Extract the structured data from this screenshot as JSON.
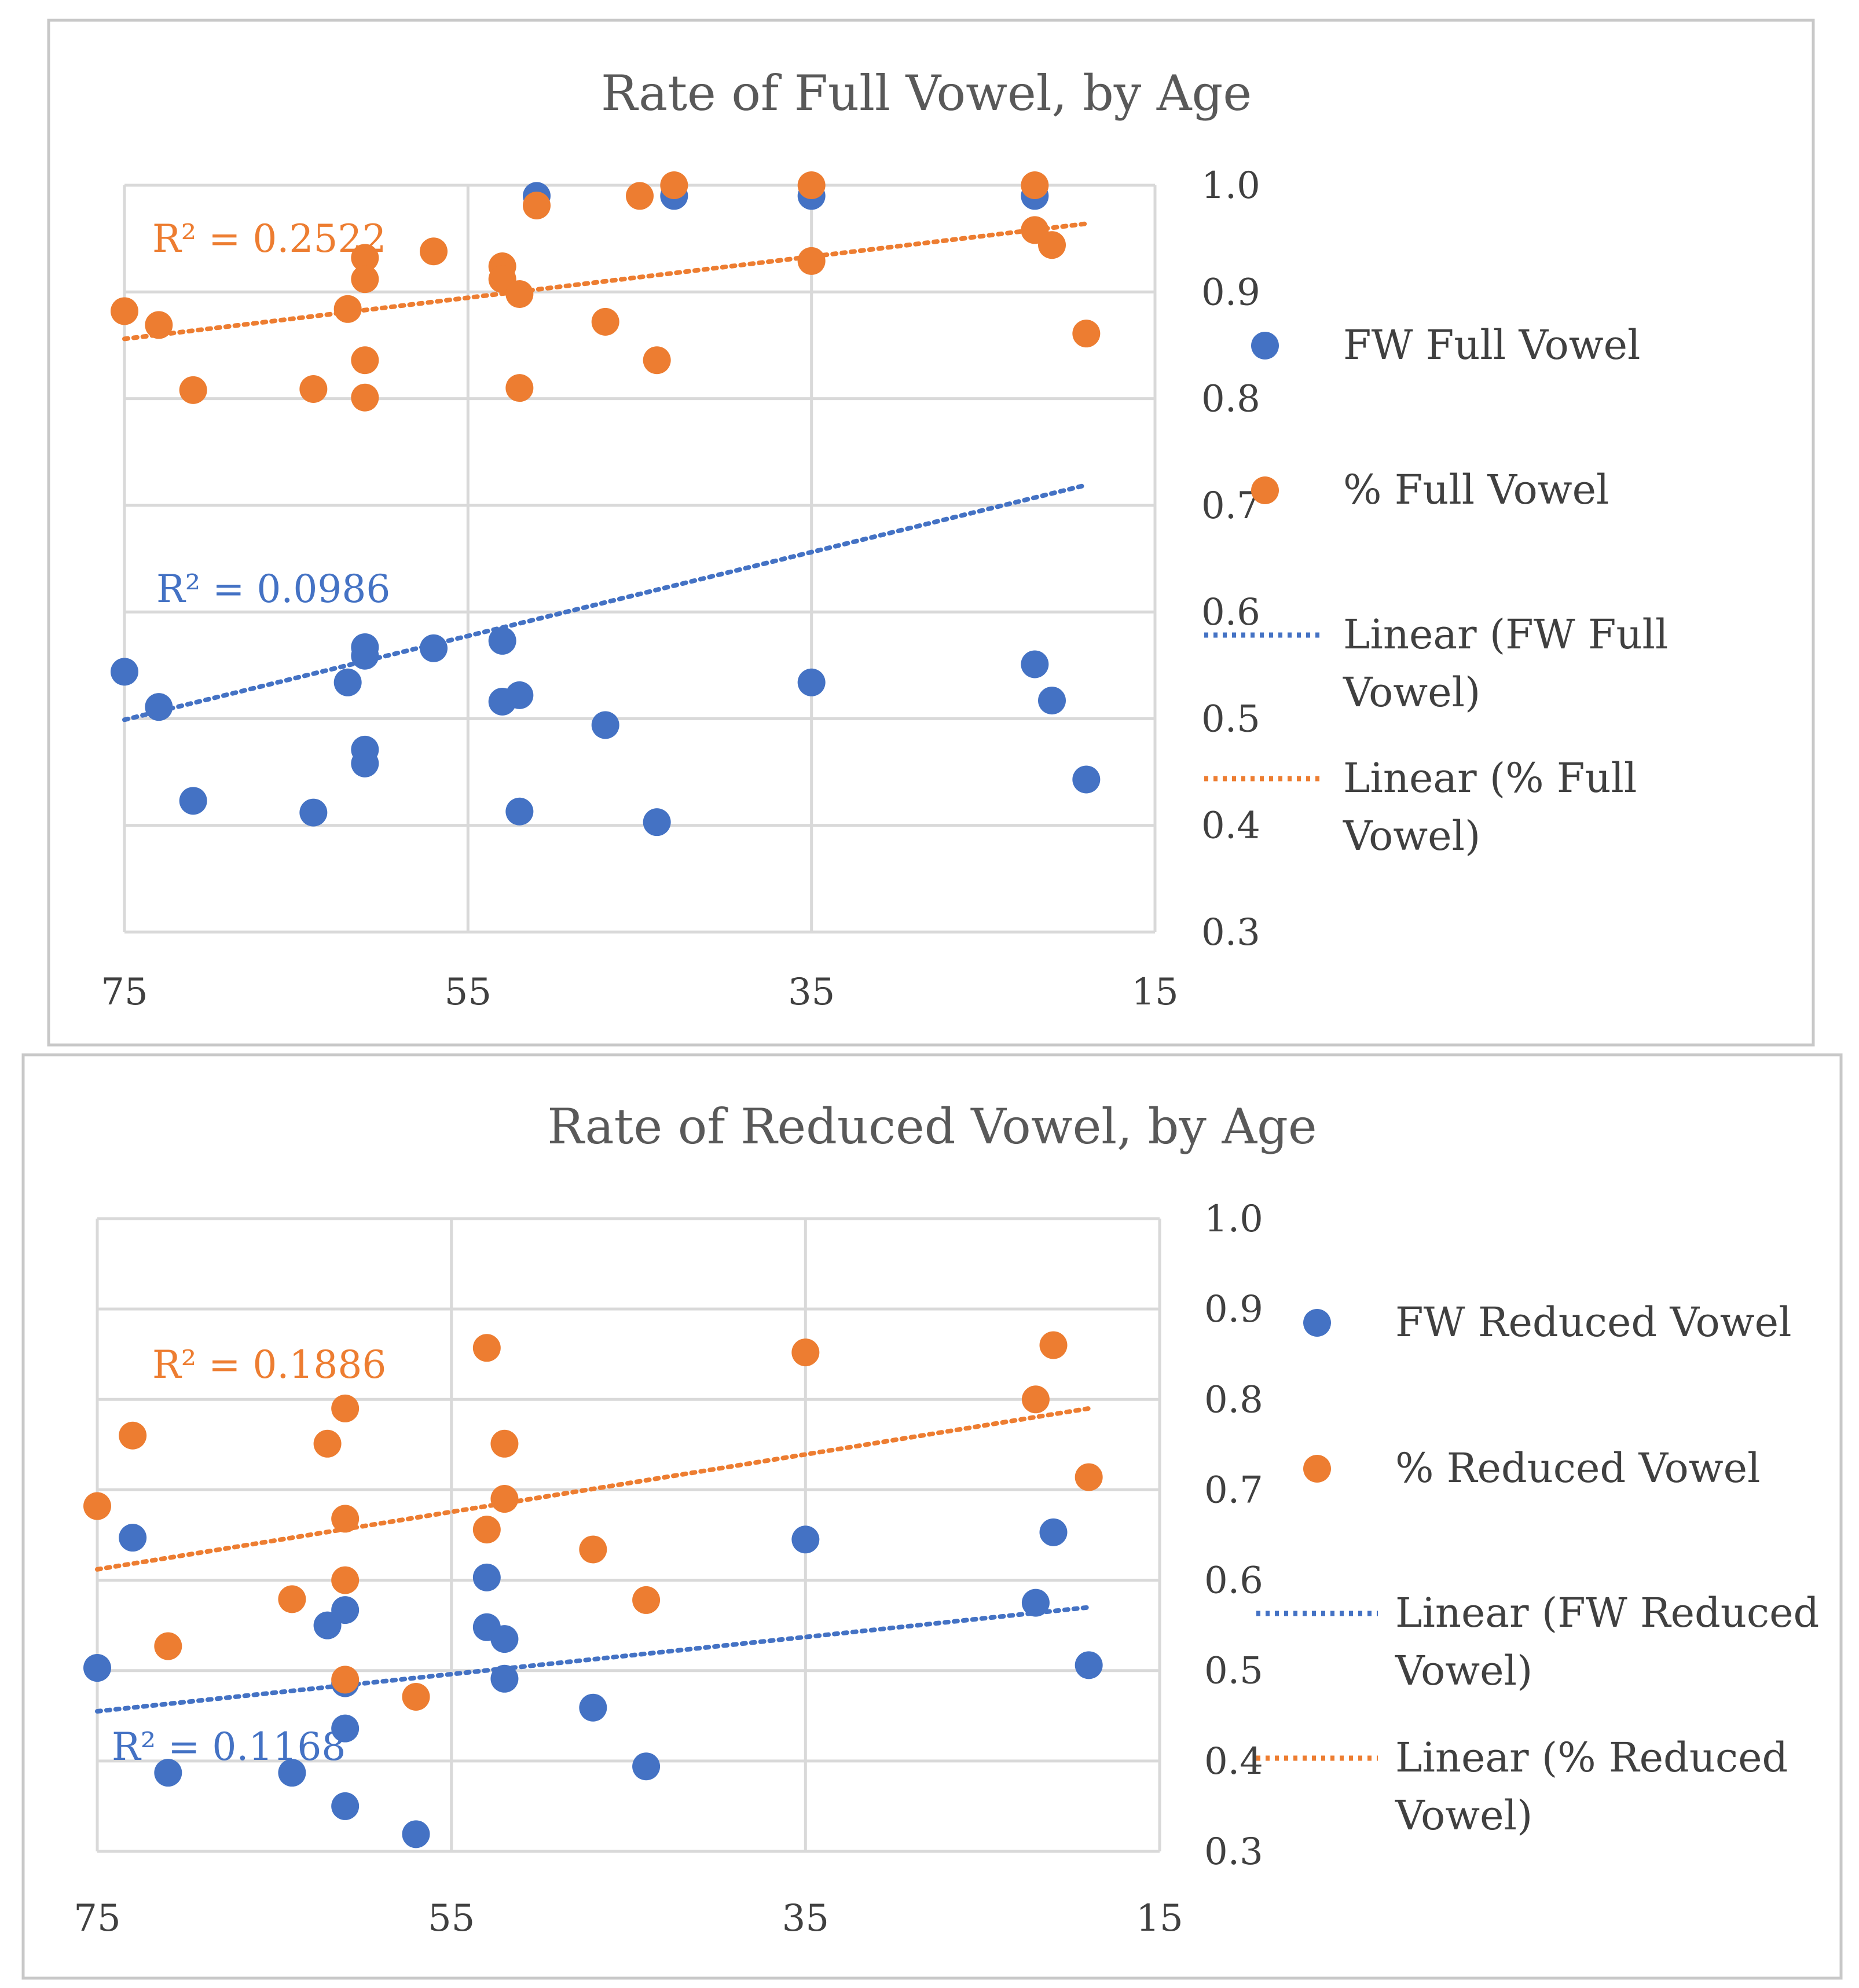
{
  "colors": {
    "blue": "#4472c4",
    "orange": "#ed7d31"
  },
  "chart_data": [
    {
      "type": "scatter",
      "title": "Rate of Full Vowel, by Age",
      "xlabel": "",
      "ylabel": "",
      "x_reversed": true,
      "xlim": [
        75,
        15
      ],
      "ylim": [
        0.3,
        1.0
      ],
      "x_ticks": [
        "75",
        "55",
        "35",
        "15"
      ],
      "y_ticks": [
        "1.0",
        "0.9",
        "0.8",
        "0.7",
        "0.6",
        "0.5",
        "0.4",
        "0.3"
      ],
      "grid": true,
      "legend_position": "right",
      "legend": [
        "FW Full Vowel",
        "% Full Vowel",
        "Linear (FW Full Vowel)",
        "Linear (% Full Vowel)"
      ],
      "series": [
        {
          "name": "FW Full Vowel",
          "color": "#4472c4",
          "points": [
            [
              75,
              0.544
            ],
            [
              73,
              0.511
            ],
            [
              71,
              0.423
            ],
            [
              64,
              0.412
            ],
            [
              62,
              0.534
            ],
            [
              61,
              0.567
            ],
            [
              61,
              0.559
            ],
            [
              61,
              0.471
            ],
            [
              61,
              0.458
            ],
            [
              57,
              0.566
            ],
            [
              53,
              0.573
            ],
            [
              53,
              0.516
            ],
            [
              52,
              0.522
            ],
            [
              52,
              0.413
            ],
            [
              51,
              0.99
            ],
            [
              47,
              0.494
            ],
            [
              44,
              0.403
            ],
            [
              43,
              0.99
            ],
            [
              35,
              0.534
            ],
            [
              35,
              0.99
            ],
            [
              22,
              0.551
            ],
            [
              22,
              0.99
            ],
            [
              21,
              0.517
            ],
            [
              19,
              0.443
            ]
          ]
        },
        {
          "name": "% Full Vowel",
          "color": "#ed7d31",
          "points": [
            [
              75,
              0.882
            ],
            [
              73,
              0.869
            ],
            [
              71,
              0.808
            ],
            [
              64,
              0.809
            ],
            [
              62,
              0.884
            ],
            [
              61,
              0.932
            ],
            [
              61,
              0.912
            ],
            [
              61,
              0.836
            ],
            [
              61,
              0.801
            ],
            [
              57,
              0.938
            ],
            [
              53,
              0.924
            ],
            [
              53,
              0.912
            ],
            [
              52,
              0.898
            ],
            [
              52,
              0.81
            ],
            [
              51,
              0.981
            ],
            [
              47,
              0.872
            ],
            [
              45,
              0.99
            ],
            [
              44,
              0.836
            ],
            [
              43,
              1.0
            ],
            [
              35,
              0.929
            ],
            [
              35,
              1.0
            ],
            [
              22,
              0.958
            ],
            [
              22,
              1.0
            ],
            [
              21,
              0.944
            ],
            [
              19,
              0.861
            ]
          ]
        }
      ],
      "trendlines": [
        {
          "name": "Linear (FW Full Vowel)",
          "color": "#4472c4",
          "x": [
            75,
            19
          ],
          "y": [
            0.499,
            0.719
          ],
          "r2_label": "R² = 0.0986"
        },
        {
          "name": "Linear (% Full Vowel)",
          "color": "#ed7d31",
          "x": [
            75,
            19
          ],
          "y": [
            0.856,
            0.964
          ],
          "r2_label": "R² = 0.2522"
        }
      ]
    },
    {
      "type": "scatter",
      "title": "Rate of  Reduced Vowel, by Age",
      "xlabel": "",
      "ylabel": "",
      "x_reversed": true,
      "xlim": [
        75,
        15
      ],
      "ylim": [
        0.3,
        1.0
      ],
      "x_ticks": [
        "75",
        "55",
        "35",
        "15"
      ],
      "y_ticks": [
        "1.0",
        "0.9",
        "0.8",
        "0.7",
        "0.6",
        "0.5",
        "0.4",
        "0.3"
      ],
      "grid": true,
      "legend_position": "right",
      "legend": [
        "FW Reduced Vowel",
        "% Reduced Vowel",
        "Linear (FW Reduced Vowel)",
        "Linear (% Reduced Vowel)"
      ],
      "series": [
        {
          "name": "FW Reduced Vowel",
          "color": "#4472c4",
          "points": [
            [
              75,
              0.503
            ],
            [
              73,
              0.647
            ],
            [
              71,
              0.387
            ],
            [
              64,
              0.387
            ],
            [
              62,
              0.55
            ],
            [
              61,
              0.567
            ],
            [
              61,
              0.486
            ],
            [
              61,
              0.436
            ],
            [
              61,
              0.35
            ],
            [
              57,
              0.319
            ],
            [
              53,
              0.603
            ],
            [
              53,
              0.548
            ],
            [
              52,
              0.535
            ],
            [
              52,
              0.491
            ],
            [
              47,
              0.459
            ],
            [
              44,
              0.394
            ],
            [
              35,
              0.645
            ],
            [
              22,
              0.575
            ],
            [
              21,
              0.653
            ],
            [
              19,
              0.506
            ]
          ]
        },
        {
          "name": "% Reduced Vowel",
          "color": "#ed7d31",
          "points": [
            [
              75,
              0.682
            ],
            [
              73,
              0.76
            ],
            [
              71,
              0.527
            ],
            [
              64,
              0.579
            ],
            [
              62,
              0.751
            ],
            [
              61,
              0.79
            ],
            [
              61,
              0.668
            ],
            [
              61,
              0.6
            ],
            [
              61,
              0.49
            ],
            [
              57,
              0.471
            ],
            [
              53,
              0.857
            ],
            [
              53,
              0.656
            ],
            [
              52,
              0.751
            ],
            [
              52,
              0.69
            ],
            [
              47,
              0.634
            ],
            [
              44,
              0.578
            ],
            [
              35,
              0.852
            ],
            [
              22,
              0.8
            ],
            [
              21,
              0.86
            ],
            [
              19,
              0.714
            ]
          ]
        }
      ],
      "trendlines": [
        {
          "name": "Linear (FW Reduced Vowel)",
          "color": "#4472c4",
          "x": [
            75,
            19
          ],
          "y": [
            0.455,
            0.57
          ],
          "r2_label": "R² = 0.1168"
        },
        {
          "name": "Linear (% Reduced Vowel)",
          "color": "#ed7d31",
          "x": [
            75,
            19
          ],
          "y": [
            0.612,
            0.79
          ],
          "r2_label": "R² = 0.1886"
        }
      ]
    }
  ]
}
